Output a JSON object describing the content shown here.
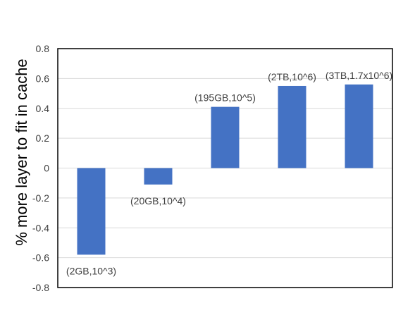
{
  "chart_data": {
    "type": "bar",
    "title": "",
    "xlabel": "",
    "ylabel": "% more layer to fit in cache",
    "ylim": [
      -0.8,
      0.8
    ],
    "yticks": [
      0.8,
      0.6,
      0.4,
      0.2,
      0,
      -0.2,
      -0.4,
      -0.6,
      -0.8
    ],
    "ytick_labels": [
      "0.8",
      "0.6",
      "0.4",
      "0.2",
      "0",
      "-0.2",
      "-0.4",
      "-0.6",
      "-0.8"
    ],
    "grid": true,
    "legend": "none",
    "bar_color": "#4472c4",
    "categories": [
      "(2GB,10^3)",
      "(20GB,10^4)",
      "(195GB,10^5)",
      "(2TB,10^6)",
      "(3TB,1.7x10^6)"
    ],
    "values": [
      -0.58,
      -0.11,
      0.41,
      0.55,
      0.56
    ],
    "data_labels": [
      "(2GB,10^3)",
      "(20GB,10^4)",
      "(195GB,10^5)",
      "(2TB,10^6)",
      "(3TB,1.7x10^6)"
    ]
  }
}
